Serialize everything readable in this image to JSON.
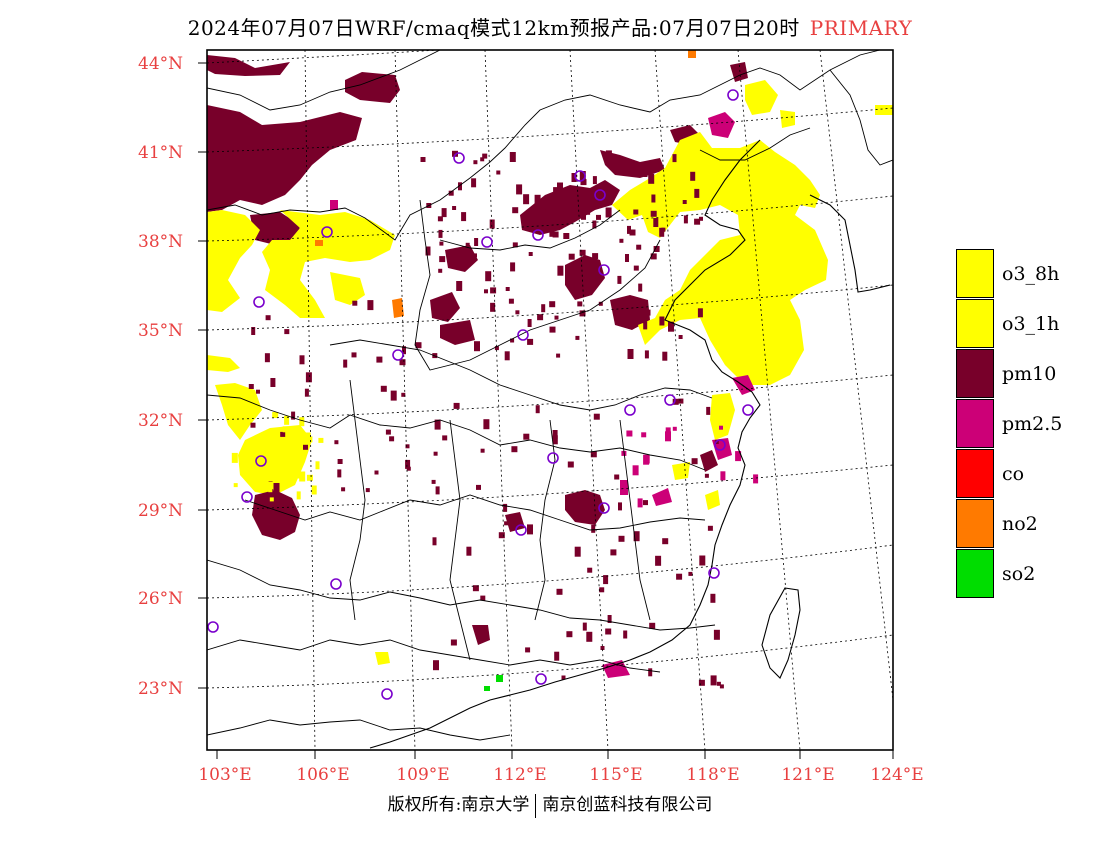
{
  "title": {
    "main": "2024年07月07日WRF/cmaq模式12km预报产品:07月07日20时",
    "tag": "PRIMARY"
  },
  "map": {
    "lat_labels": [
      "44°N",
      "41°N",
      "38°N",
      "35°N",
      "32°N",
      "29°N",
      "26°N",
      "23°N"
    ],
    "lon_labels": [
      "103°E",
      "106°E",
      "109°E",
      "112°E",
      "115°E",
      "118°E",
      "121°E",
      "124°E"
    ],
    "colors": {
      "o3_8h": "#ffff00",
      "o3_1h": "#ffff00",
      "pm10": "#78002a",
      "pm25": "#cc0077",
      "co": "#ff0000",
      "no2": "#ff7a00",
      "so2": "#00dd00",
      "station": "#7a00cc",
      "label": "#e84040"
    }
  },
  "legend": {
    "items": [
      {
        "label": "o3_8h",
        "color": "#ffff00"
      },
      {
        "label": "o3_1h",
        "color": "#ffff00"
      },
      {
        "label": "pm10",
        "color": "#78002a"
      },
      {
        "label": "pm2.5",
        "color": "#cc0077"
      },
      {
        "label": "co",
        "color": "#ff0000"
      },
      {
        "label": "no2",
        "color": "#ff7a00"
      },
      {
        "label": "so2",
        "color": "#00dd00"
      }
    ]
  },
  "footer": {
    "left": "版权所有:南京大学",
    "right": "南京创蓝科技有限公司"
  }
}
